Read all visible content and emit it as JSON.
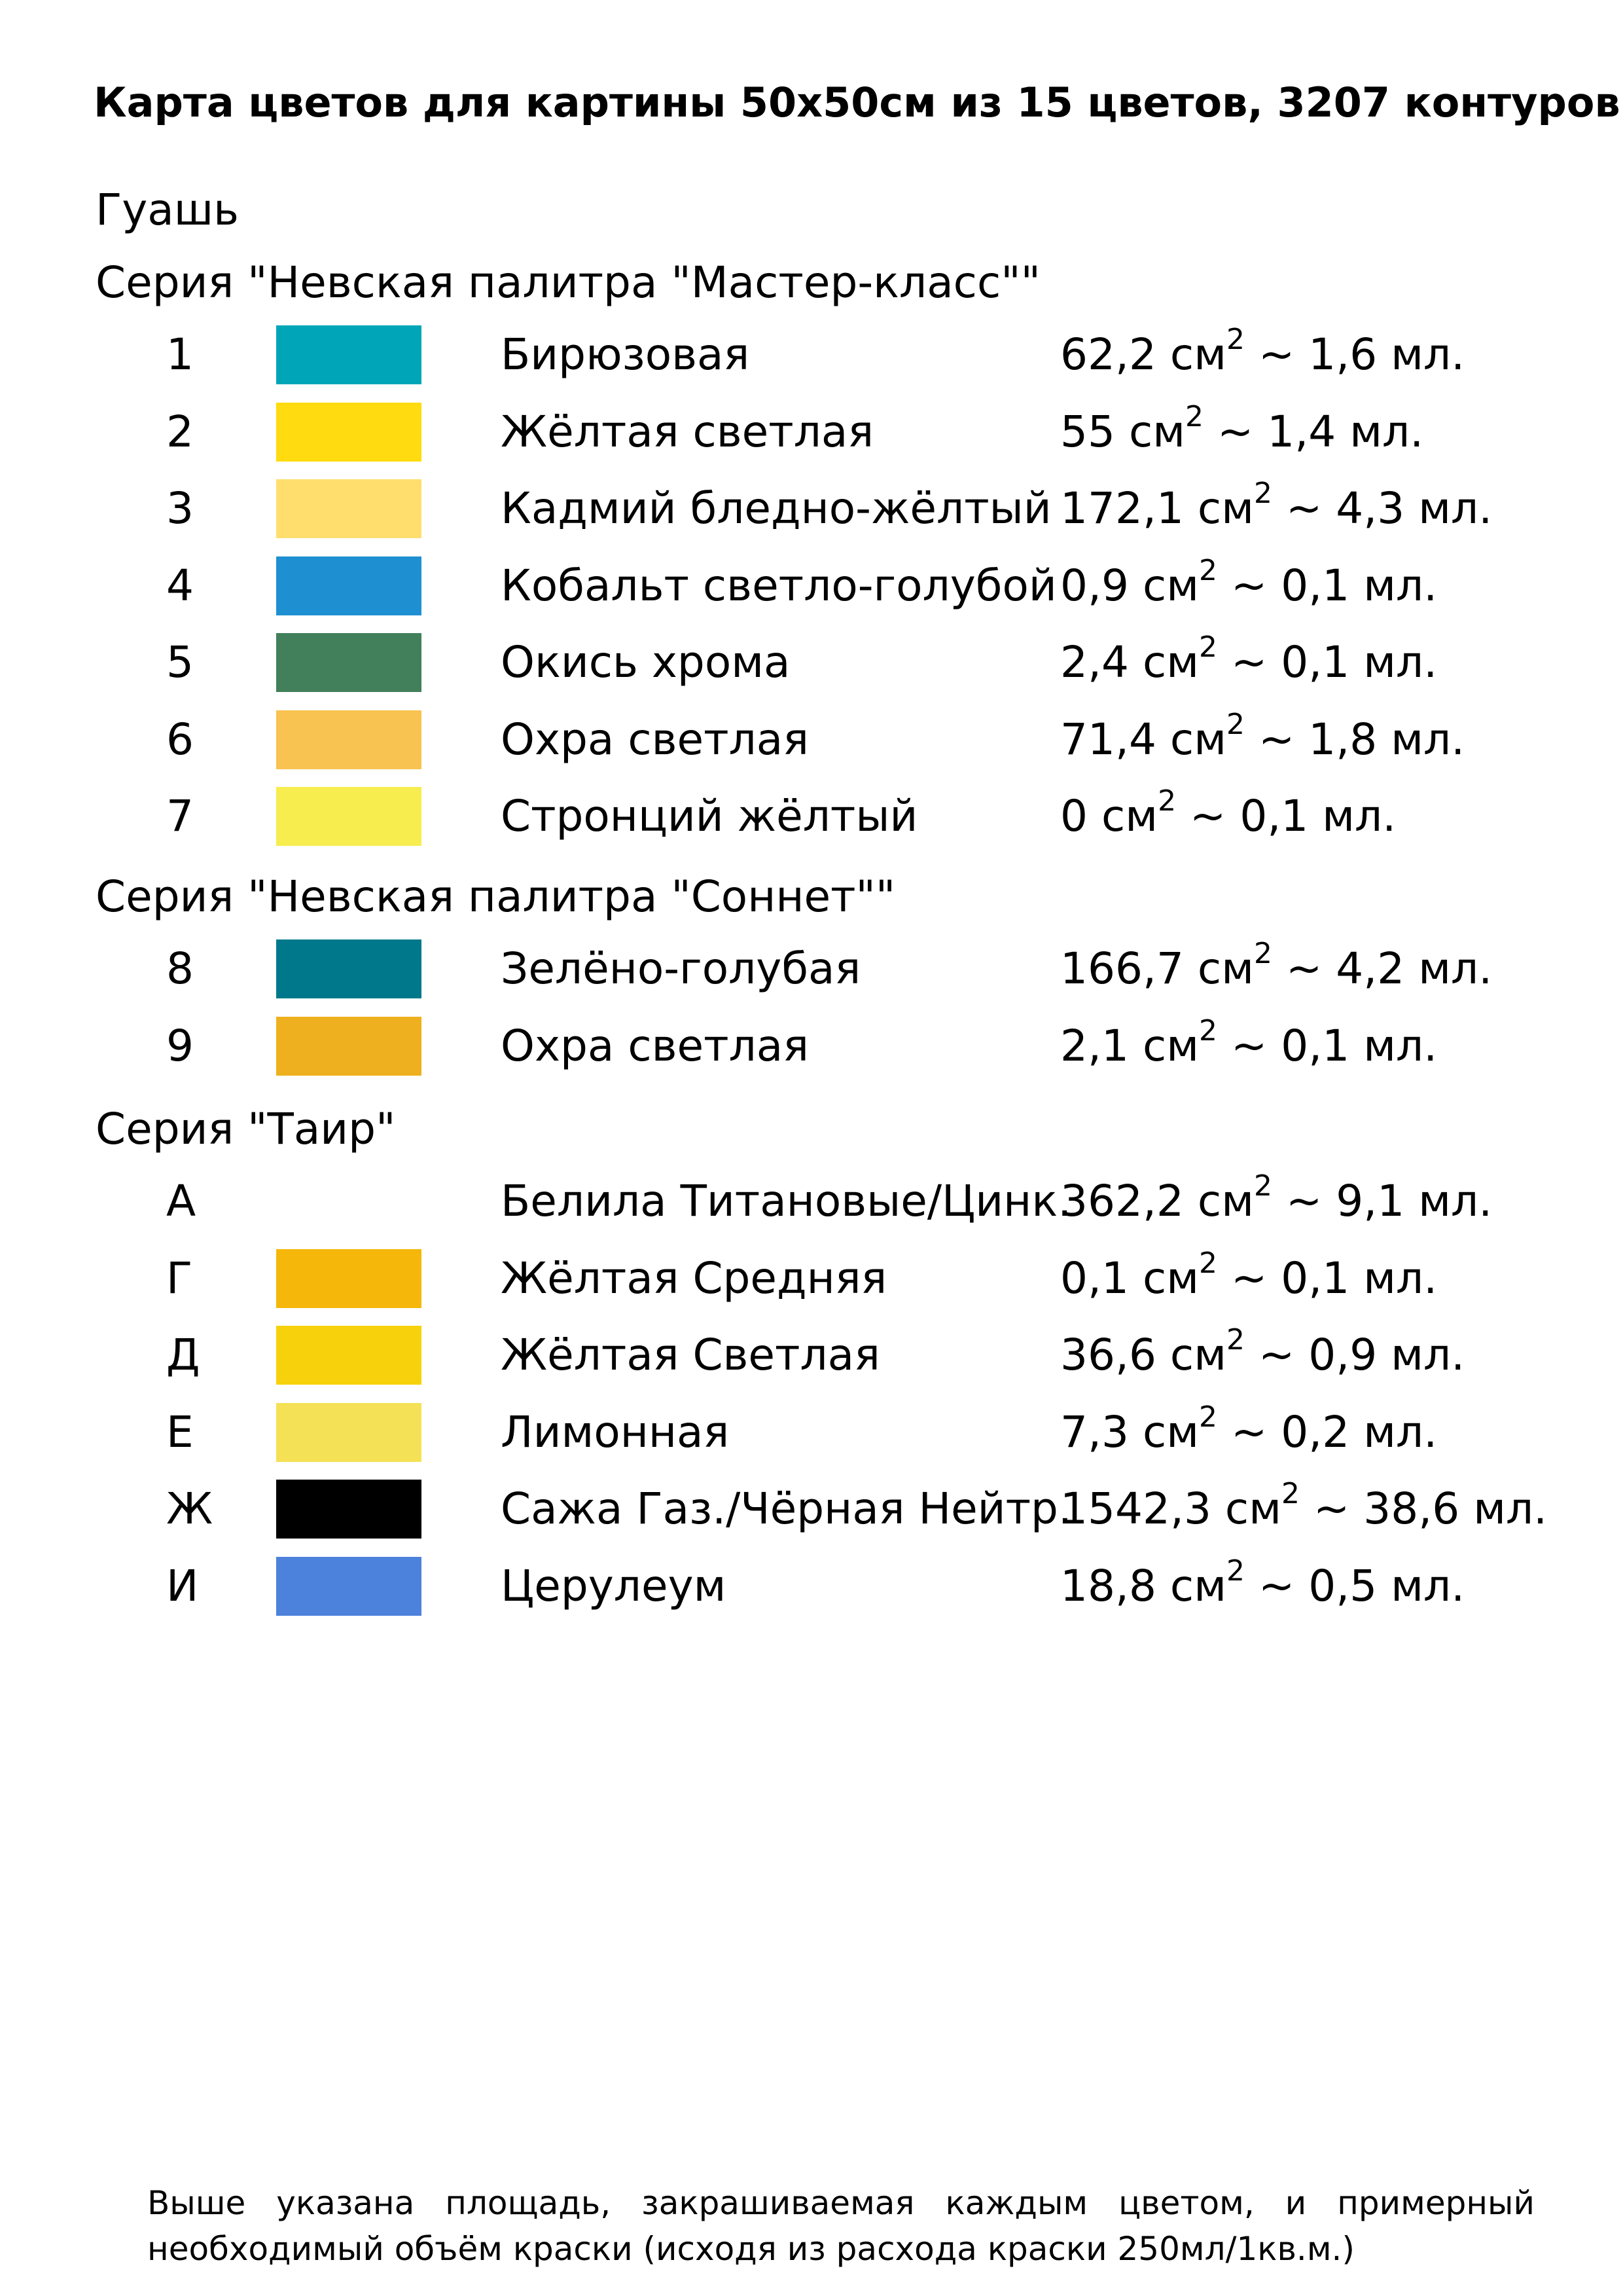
{
  "title": "Карта цветов для картины 50х50см из 15 цветов, 3207 контуров",
  "medium": "Гуашь",
  "series": [
    {
      "heading": "Серия \"Невская палитра \"Мастер-класс\"\"",
      "colors": [
        {
          "code": "1",
          "swatch": "#00A6B8",
          "name": "Бирюзовая",
          "area": "62,2 см",
          "sup": "2",
          "volume": "~ 1,6 мл."
        },
        {
          "code": "2",
          "swatch": "#FFDB0F",
          "name": "Жёлтая светлая",
          "area": "55 см",
          "sup": "2",
          "volume": "~ 1,4 мл."
        },
        {
          "code": "3",
          "swatch": "#FFDE6E",
          "name": "Кадмий бледно-жёлтый",
          "area": "172,1 см",
          "sup": "2",
          "volume": "~ 4,3 мл."
        },
        {
          "code": "4",
          "swatch": "#1E90D2",
          "name": "Кобальт светло-голубой",
          "area": "0,9 см",
          "sup": "2",
          "volume": "~ 0,1 мл."
        },
        {
          "code": "5",
          "swatch": "#41805A",
          "name": "Окись хрома",
          "area": "2,4 см",
          "sup": "2",
          "volume": "~ 0,1 мл."
        },
        {
          "code": "6",
          "swatch": "#F8C350",
          "name": "Охра светлая",
          "area": "71,4 см",
          "sup": "2",
          "volume": "~ 1,8 мл."
        },
        {
          "code": "7",
          "swatch": "#F7ED4F",
          "name": "Стронций жёлтый",
          "area": "0 см",
          "sup": "2",
          "volume": "~ 0,1 мл."
        }
      ]
    },
    {
      "heading": "Серия \"Невская палитра \"Соннет\"\"",
      "colors": [
        {
          "code": "8",
          "swatch": "#00788B",
          "name": "Зелёно-голубая",
          "area": "166,7 см",
          "sup": "2",
          "volume": "~ 4,2 мл."
        },
        {
          "code": "9",
          "swatch": "#EEB01E",
          "name": "Охра светлая",
          "area": "2,1 см",
          "sup": "2",
          "volume": "~ 0,1 мл."
        }
      ]
    },
    {
      "heading": "Серия \"Таир\"",
      "colors": [
        {
          "code": "А",
          "swatch": "#FFFFFF",
          "name": "Белила Титановые/Цинк.",
          "area": "362,2 см",
          "sup": "2",
          "volume": "~ 9,1 мл."
        },
        {
          "code": "Г",
          "swatch": "#F5B70A",
          "name": "Жёлтая Средняя",
          "area": "0,1 см",
          "sup": "2",
          "volume": "~ 0,1 мл."
        },
        {
          "code": "Д",
          "swatch": "#F7D20C",
          "name": "Жёлтая Светлая",
          "area": "36,6 см",
          "sup": "2",
          "volume": "~ 0,9 мл."
        },
        {
          "code": "Е",
          "swatch": "#F5E155",
          "name": "Лимонная",
          "area": "7,3 см",
          "sup": "2",
          "volume": "~ 0,2 мл."
        },
        {
          "code": "Ж",
          "swatch": "#000000",
          "name": "Сажа Газ./Чёрная Нейтр.",
          "area": "1542,3 см",
          "sup": "2",
          "volume": "~ 38,6 мл."
        },
        {
          "code": "И",
          "swatch": "#4D82DC",
          "name": "Церулеум",
          "area": "18,8 см",
          "sup": "2",
          "volume": "~ 0,5 мл."
        }
      ]
    }
  ],
  "footnote": "Выше указана площадь, закрашиваемая каждым цветом, и примерный необходимый объём краски (исходя из расхода краски 250мл/1кв.м.)"
}
